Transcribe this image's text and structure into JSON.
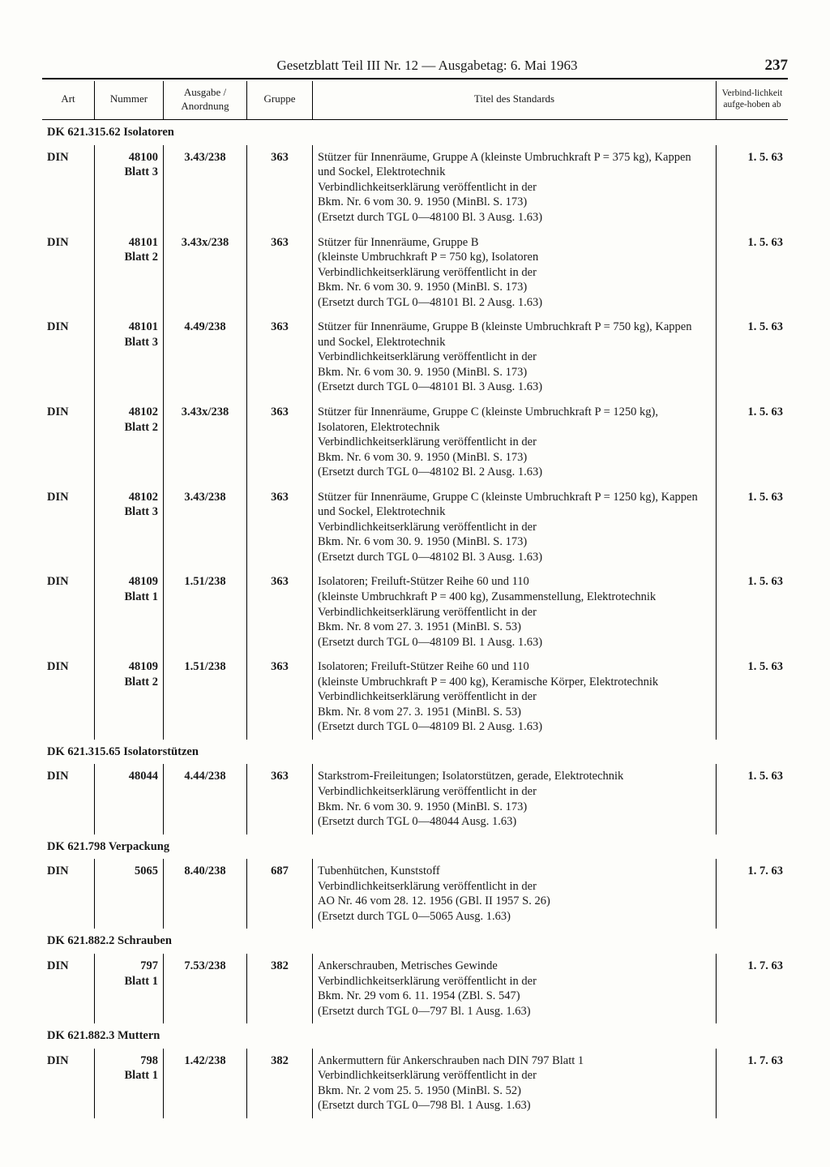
{
  "header": {
    "title": "Gesetzblatt Teil III Nr. 12 — Ausgabetag: 6. Mai 1963",
    "page": "237"
  },
  "columns": {
    "art": "Art",
    "nummer": "Nummer",
    "ausgabe": "Ausgabe / Anordnung",
    "gruppe": "Gruppe",
    "titel": "Titel des Standards",
    "verbind": "Verbind-lichkeit aufge-hoben ab"
  },
  "sections": [
    {
      "heading": "DK 621.315.62 Isolatoren",
      "rows": [
        {
          "art": "DIN",
          "nummer": "48100\nBlatt 3",
          "ausgabe": "3.43/238",
          "gruppe": "363",
          "titel": "Stützer für Innenräume, Gruppe A (kleinste Umbruchkraft P = 375 kg), Kappen und Sockel, Elektrotechnik\nVerbindlichkeitserklärung veröffentlicht in der\nBkm. Nr. 6 vom 30. 9. 1950 (MinBl. S. 173)\n(Ersetzt durch TGL 0—48100 Bl. 3 Ausg. 1.63)",
          "date": "1. 5. 63"
        },
        {
          "art": "DIN",
          "nummer": "48101\nBlatt 2",
          "ausgabe": "3.43x/238",
          "gruppe": "363",
          "titel": "Stützer für Innenräume, Gruppe B\n(kleinste Umbruchkraft P = 750 kg), Isolatoren\nVerbindlichkeitserklärung veröffentlicht in der\nBkm. Nr. 6 vom 30. 9. 1950 (MinBl. S. 173)\n(Ersetzt durch TGL 0—48101 Bl. 2 Ausg. 1.63)",
          "date": "1. 5. 63"
        },
        {
          "art": "DIN",
          "nummer": "48101\nBlatt 3",
          "ausgabe": "4.49/238",
          "gruppe": "363",
          "titel": "Stützer für Innenräume, Gruppe B (kleinste Umbruchkraft P = 750 kg), Kappen und Sockel, Elektrotechnik\nVerbindlichkeitserklärung veröffentlicht in der\nBkm. Nr. 6 vom 30. 9. 1950 (MinBl. S. 173)\n(Ersetzt durch TGL 0—48101 Bl. 3 Ausg. 1.63)",
          "date": "1. 5. 63"
        },
        {
          "art": "DIN",
          "nummer": "48102\nBlatt 2",
          "ausgabe": "3.43x/238",
          "gruppe": "363",
          "titel": "Stützer für Innenräume, Gruppe C (kleinste Umbruchkraft P = 1250 kg), Isolatoren, Elektrotechnik\nVerbindlichkeitserklärung veröffentlicht in der\nBkm. Nr. 6 vom 30. 9. 1950 (MinBl. S. 173)\n(Ersetzt durch TGL 0—48102 Bl. 2 Ausg. 1.63)",
          "date": "1. 5. 63"
        },
        {
          "art": "DIN",
          "nummer": "48102\nBlatt 3",
          "ausgabe": "3.43/238",
          "gruppe": "363",
          "titel": "Stützer für Innenräume, Gruppe C (kleinste Umbruchkraft P = 1250 kg), Kappen und Sockel, Elektrotechnik\nVerbindlichkeitserklärung veröffentlicht in der\nBkm. Nr. 6 vom 30. 9. 1950 (MinBl. S. 173)\n(Ersetzt durch TGL 0—48102 Bl. 3 Ausg. 1.63)",
          "date": "1. 5. 63"
        },
        {
          "art": "DIN",
          "nummer": "48109\nBlatt 1",
          "ausgabe": "1.51/238",
          "gruppe": "363",
          "titel": "Isolatoren; Freiluft-Stützer Reihe 60 und 110\n(kleinste Umbruchkraft P = 400 kg), Zusammenstellung, Elektrotechnik\nVerbindlichkeitserklärung veröffentlicht in der\nBkm. Nr. 8 vom 27. 3. 1951 (MinBl. S. 53)\n(Ersetzt durch TGL 0—48109 Bl. 1 Ausg. 1.63)",
          "date": "1. 5. 63"
        },
        {
          "art": "DIN",
          "nummer": "48109\nBlatt 2",
          "ausgabe": "1.51/238",
          "gruppe": "363",
          "titel": "Isolatoren; Freiluft-Stützer Reihe 60 und 110\n(kleinste Umbruchkraft P = 400 kg), Keramische Körper, Elektrotechnik\nVerbindlichkeitserklärung veröffentlicht in der\nBkm. Nr. 8 vom 27. 3. 1951 (MinBl. S. 53)\n(Ersetzt durch TGL 0—48109 Bl. 2 Ausg. 1.63)",
          "date": "1. 5. 63"
        }
      ]
    },
    {
      "heading": "DK 621.315.65 Isolatorstützen",
      "rows": [
        {
          "art": "DIN",
          "nummer": "48044",
          "ausgabe": "4.44/238",
          "gruppe": "363",
          "titel": "Starkstrom-Freileitungen; Isolatorstützen, gerade, Elektrotechnik\nVerbindlichkeitserklärung veröffentlicht in der\nBkm. Nr. 6 vom 30. 9. 1950 (MinBl. S. 173)\n(Ersetzt durch TGL 0—48044 Ausg. 1.63)",
          "date": "1. 5. 63"
        }
      ]
    },
    {
      "heading": "DK 621.798 Verpackung",
      "rows": [
        {
          "art": "DIN",
          "nummer": "5065",
          "ausgabe": "8.40/238",
          "gruppe": "687",
          "titel": "Tubenhütchen, Kunststoff\nVerbindlichkeitserklärung veröffentlicht in der\nAO Nr. 46 vom 28. 12. 1956 (GBl. II 1957 S. 26)\n(Ersetzt durch TGL 0—5065 Ausg. 1.63)",
          "date": "1. 7. 63"
        }
      ]
    },
    {
      "heading": "DK 621.882.2 Schrauben",
      "rows": [
        {
          "art": "DIN",
          "nummer": "797\nBlatt 1",
          "ausgabe": "7.53/238",
          "gruppe": "382",
          "titel": "Ankerschrauben, Metrisches Gewinde\nVerbindlichkeitserklärung veröffentlicht in der\nBkm. Nr. 29 vom 6. 11. 1954 (ZBl. S. 547)\n(Ersetzt durch TGL 0—797 Bl. 1 Ausg. 1.63)",
          "date": "1. 7. 63"
        }
      ]
    },
    {
      "heading": "DK 621.882.3 Muttern",
      "rows": [
        {
          "art": "DIN",
          "nummer": "798\nBlatt 1",
          "ausgabe": "1.42/238",
          "gruppe": "382",
          "titel": "Ankermuttern für Ankerschrauben nach DIN 797 Blatt 1\nVerbindlichkeitserklärung veröffentlicht in der\nBkm. Nr. 2 vom 25. 5. 1950 (MinBl. S. 52)\n(Ersetzt durch TGL 0—798 Bl. 1 Ausg. 1.63)",
          "date": "1. 7. 63"
        }
      ]
    }
  ]
}
